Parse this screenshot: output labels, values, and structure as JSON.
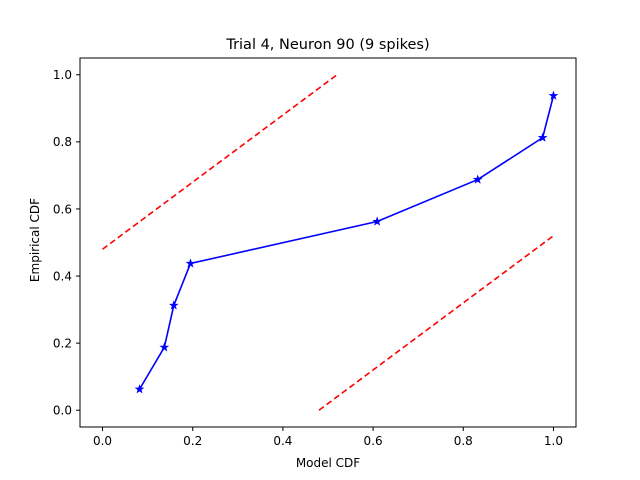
{
  "chart_data": {
    "type": "line",
    "title": "Trial 4, Neuron 90 (9 spikes)",
    "xlabel": "Model CDF",
    "ylabel": "Empirical CDF",
    "xlim": [
      -0.05,
      1.05
    ],
    "ylim": [
      -0.05,
      1.05
    ],
    "xticks": [
      0.0,
      0.2,
      0.4,
      0.6,
      0.8,
      1.0
    ],
    "xtick_labels": [
      "0.0",
      "0.2",
      "0.4",
      "0.6",
      "0.8",
      "1.0"
    ],
    "yticks": [
      0.0,
      0.2,
      0.4,
      0.6,
      0.8,
      1.0
    ],
    "ytick_labels": [
      "0.0",
      "0.2",
      "0.4",
      "0.6",
      "0.8",
      "1.0"
    ],
    "grid": false,
    "series": [
      {
        "style": "solid",
        "marker": "star",
        "color": "#0000ff",
        "x": [
          0.082,
          0.137,
          0.158,
          0.195,
          0.609,
          0.832,
          0.976,
          1.0
        ],
        "y": [
          0.0625,
          0.1875,
          0.3125,
          0.4375,
          0.5625,
          0.6875,
          0.8125,
          0.9375
        ]
      },
      {
        "style": "dashed",
        "color": "#ff0000",
        "x": [
          0.0,
          0.52
        ],
        "y": [
          0.48,
          1.0
        ]
      },
      {
        "style": "dashed",
        "color": "#ff0000",
        "x": [
          0.48,
          1.0
        ],
        "y": [
          0.0,
          0.52
        ]
      }
    ]
  }
}
